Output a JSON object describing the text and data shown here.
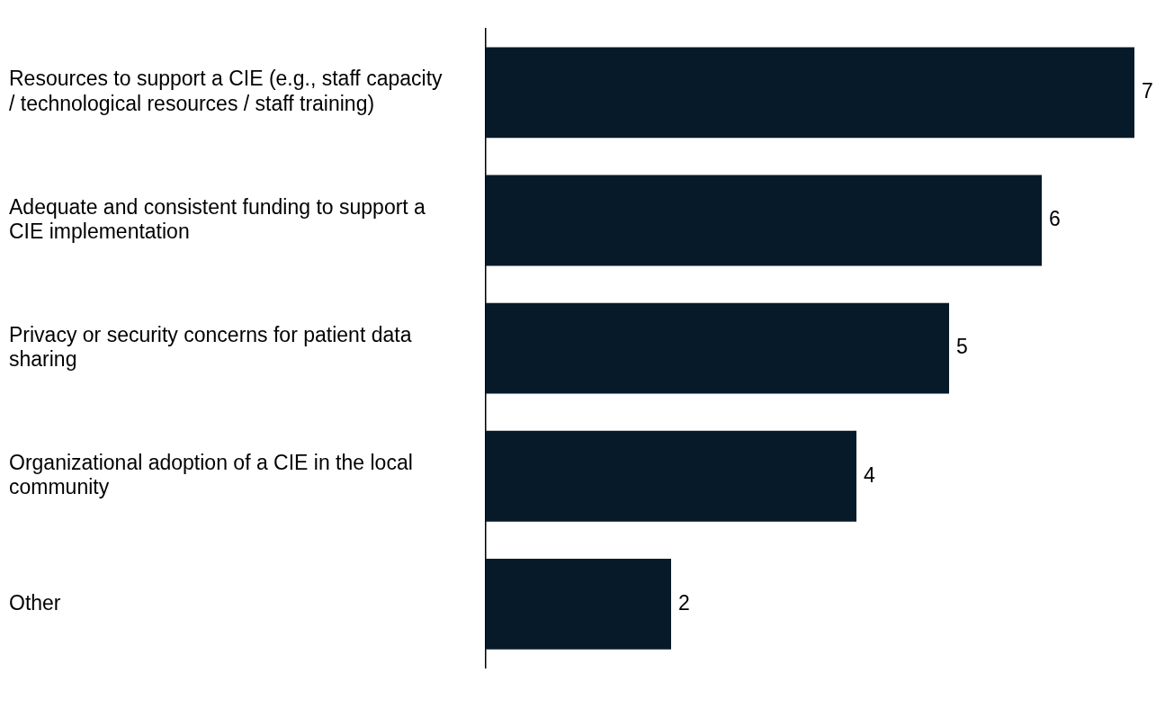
{
  "chart_data": {
    "type": "bar",
    "orientation": "horizontal",
    "categories": [
      "Resources to support a CIE (e.g., staff capacity / technological resources / staff training)",
      "Adequate and consistent funding to support a CIE implementation",
      "Privacy or security concerns for patient data sharing",
      "Organizational adoption of a CIE in the local community",
      "Other"
    ],
    "values": [
      7,
      6,
      5,
      4,
      2
    ],
    "color": "#061a2a",
    "data_labels": true,
    "legend": false
  }
}
